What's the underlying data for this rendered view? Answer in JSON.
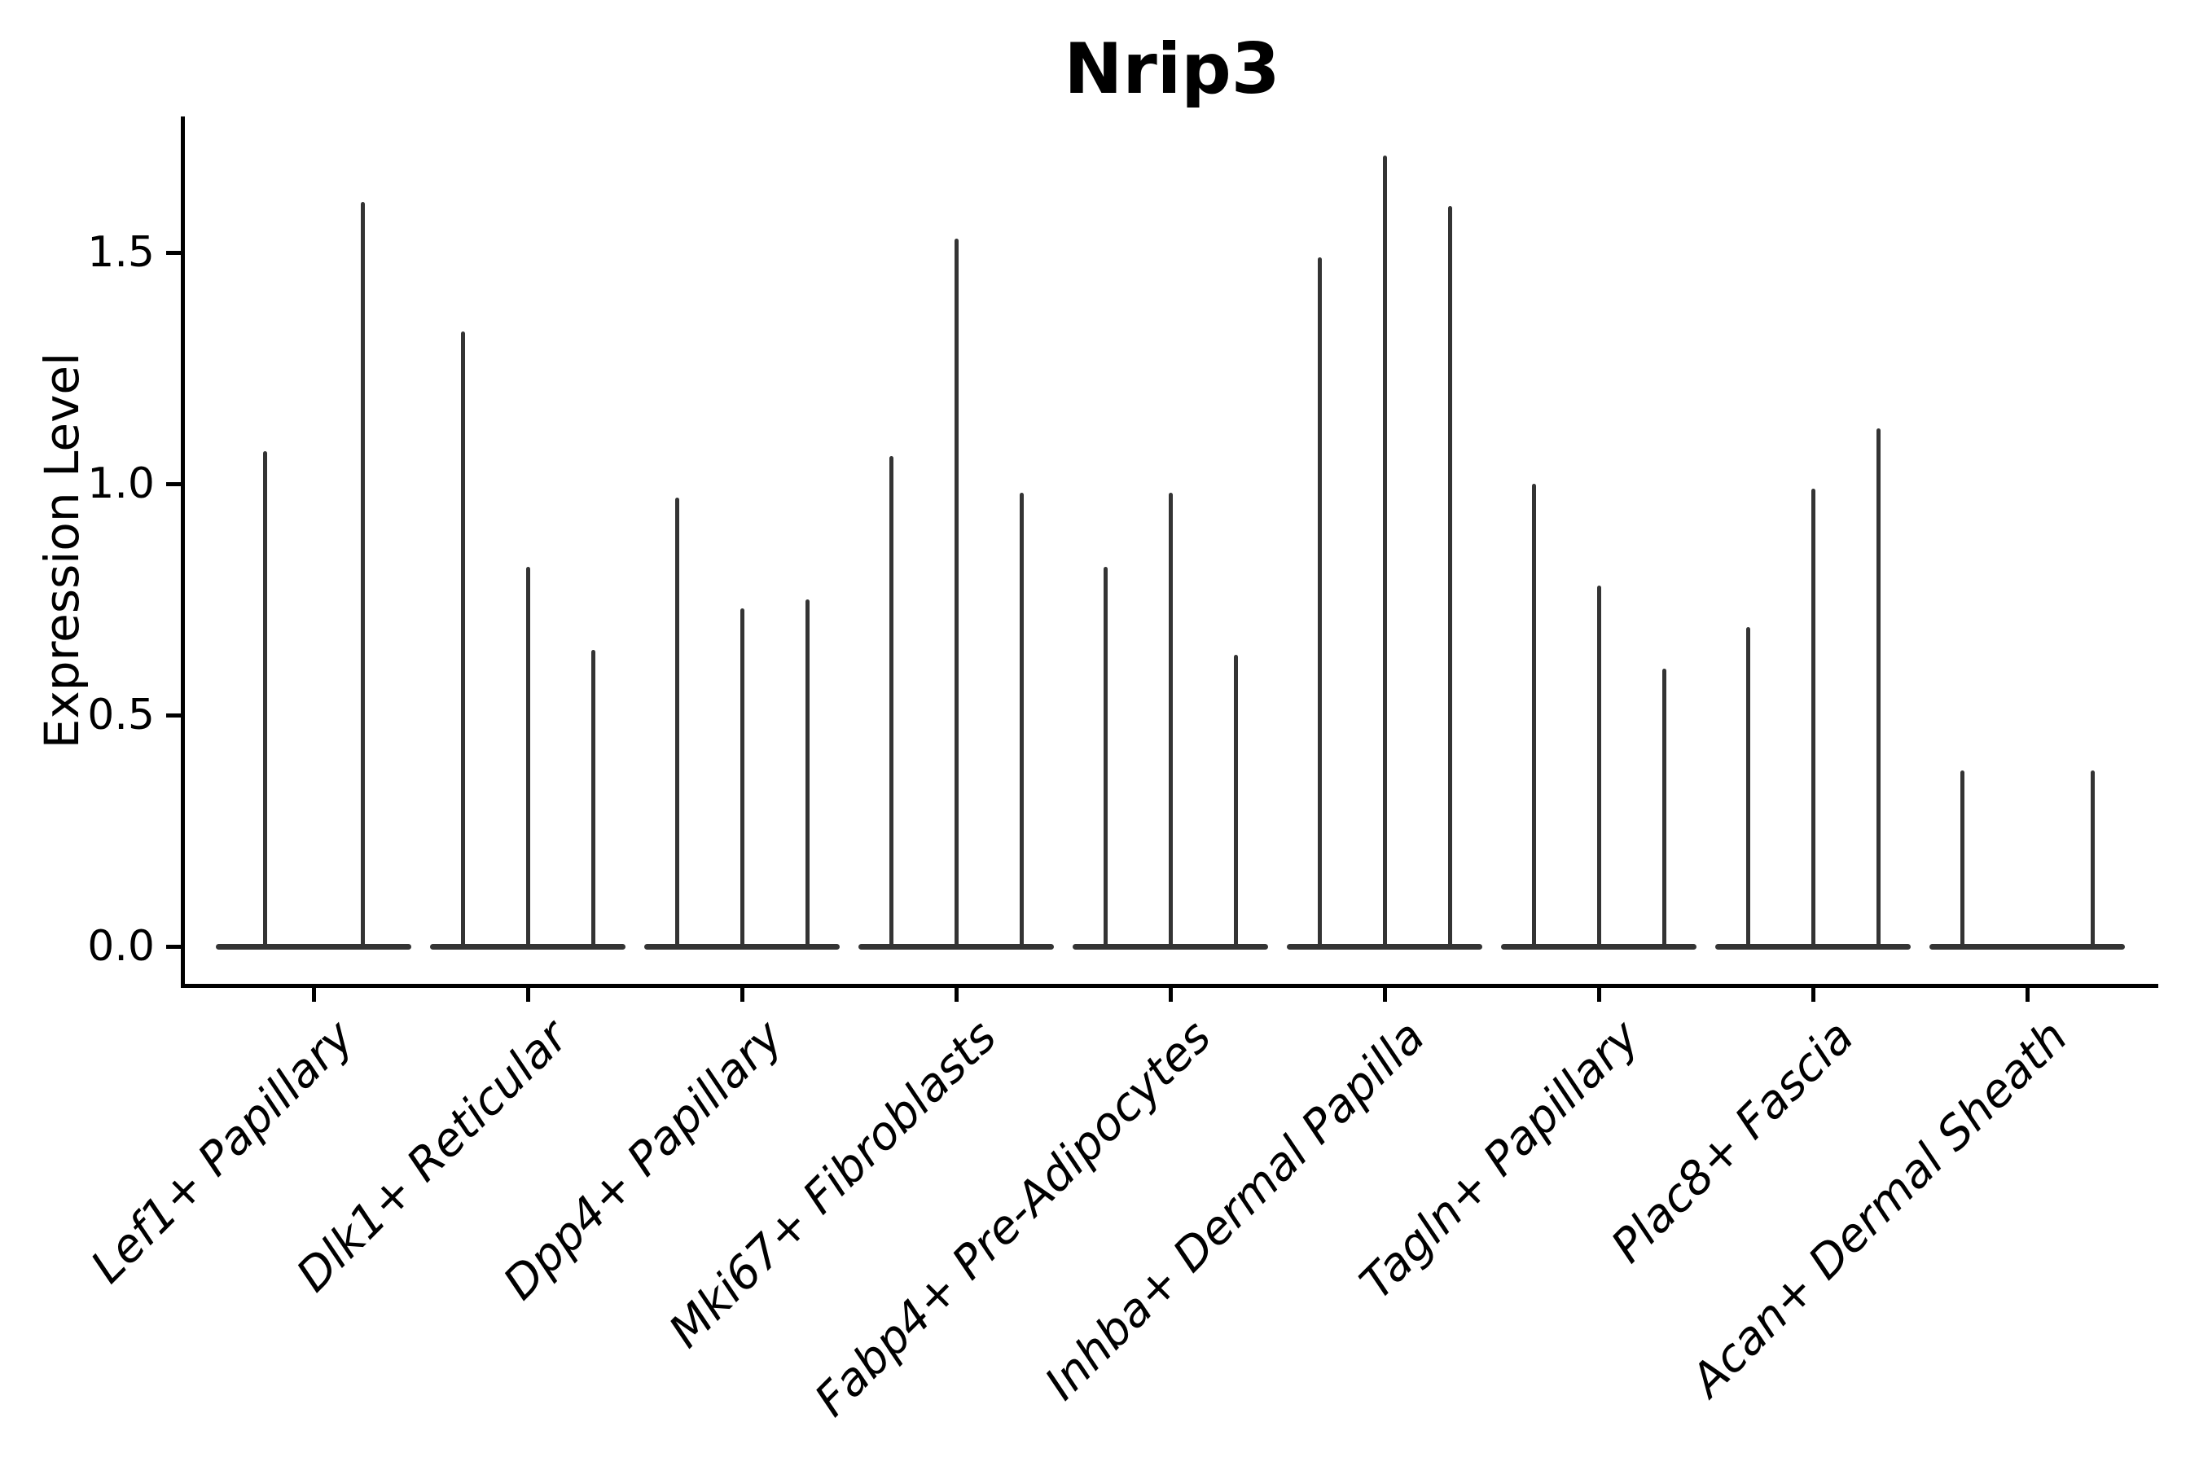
{
  "chart_data": {
    "type": "violin",
    "title": "Nrip3",
    "xlabel": "",
    "ylabel": "Expression Level",
    "ytick_labels": [
      "0.0",
      "0.5",
      "1.0",
      "1.5"
    ],
    "ytick_values": [
      0.0,
      0.5,
      1.0,
      1.5
    ],
    "ylim": [
      -0.08,
      1.79
    ],
    "grid": false,
    "legend_position": "none",
    "violin_color": "#343434",
    "axis_color": "#000000",
    "categories": [
      "Lef1+ Papillary",
      "Dlk1+ Reticular",
      "Dpp4+ Papillary",
      "Mki67+ Fibroblasts",
      "Fabp4+ Pre-Adipocytes",
      "Inhba+ Dermal Papilla",
      "Tagln+ Papillary",
      "Plac8+ Fascia",
      "Acan+ Dermal Sheath"
    ],
    "series": [
      {
        "category": "Lef1+ Papillary",
        "violin_peaks": [
          1.07,
          1.61
        ]
      },
      {
        "category": "Dlk1+ Reticular",
        "violin_peaks": [
          1.33,
          0.82,
          0.64
        ]
      },
      {
        "category": "Dpp4+ Papillary",
        "violin_peaks": [
          0.97,
          0.73,
          0.75
        ]
      },
      {
        "category": "Mki67+ Fibroblasts",
        "violin_peaks": [
          1.06,
          1.53,
          0.98
        ]
      },
      {
        "category": "Fabp4+ Pre-Adipocytes",
        "violin_peaks": [
          0.82,
          0.98,
          0.63
        ]
      },
      {
        "category": "Inhba+ Dermal Papilla",
        "violin_peaks": [
          1.49,
          1.71,
          1.6
        ]
      },
      {
        "category": "Tagln+ Papillary",
        "violin_peaks": [
          1.0,
          0.78,
          0.6
        ]
      },
      {
        "category": "Plac8+ Fascia",
        "violin_peaks": [
          0.69,
          0.99,
          1.12
        ]
      },
      {
        "category": "Acan+ Dermal Sheath",
        "violin_peaks": [
          0.38,
          null,
          0.38
        ]
      }
    ]
  }
}
